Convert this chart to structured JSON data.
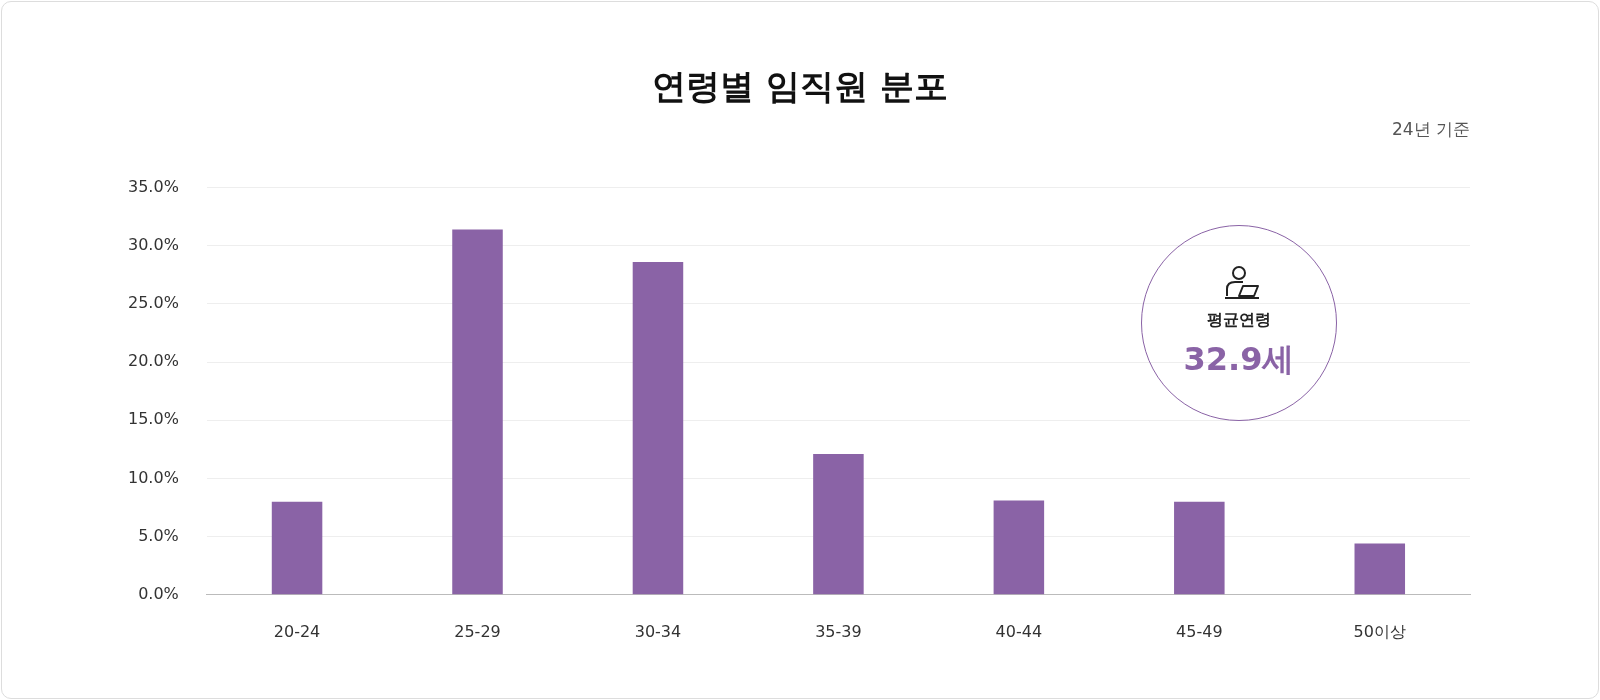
{
  "chart_data": {
    "type": "bar",
    "title": "연령별 임직원 분포",
    "subtitle": "24년 기준",
    "categories": [
      "20-24",
      "25-29",
      "30-34",
      "35-39",
      "40-44",
      "45-49",
      "50이상"
    ],
    "values": [
      8.0,
      31.4,
      28.6,
      12.1,
      8.1,
      8.0,
      4.4
    ],
    "color": "#8a63a6",
    "ylim": [
      0,
      35
    ],
    "yticks": [
      {
        "value": 0,
        "label": "0.0%"
      },
      {
        "value": 5,
        "label": "5.0%"
      },
      {
        "value": 10,
        "label": "10.0%"
      },
      {
        "value": 15,
        "label": "15.0%"
      },
      {
        "value": 20,
        "label": "20.0%"
      },
      {
        "value": 25,
        "label": "25.0%"
      },
      {
        "value": 30,
        "label": "30.0%"
      },
      {
        "value": 35,
        "label": "35.0%"
      }
    ],
    "grid": "y",
    "legend": false,
    "annotations": [
      "평균연령",
      "32.9세"
    ]
  }
}
